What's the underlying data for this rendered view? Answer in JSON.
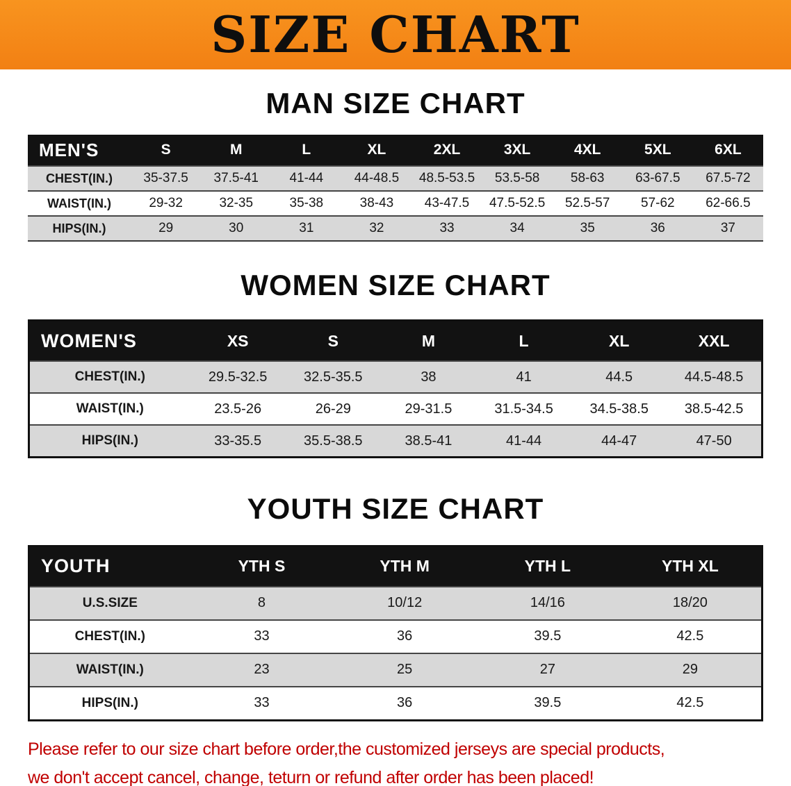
{
  "banner": {
    "title": "SIZE CHART",
    "bg_color": "#f28013",
    "text_color": "#0e0e0e"
  },
  "sections": {
    "men": {
      "heading": "MAN SIZE CHART",
      "table": {
        "label": "MEN'S",
        "columns": [
          "S",
          "M",
          "L",
          "XL",
          "2XL",
          "3XL",
          "4XL",
          "5XL",
          "6XL"
        ],
        "rows": [
          {
            "label": "CHEST(IN.)",
            "values": [
              "35-37.5",
              "37.5-41",
              "41-44",
              "44-48.5",
              "48.5-53.5",
              "53.5-58",
              "58-63",
              "63-67.5",
              "67.5-72"
            ]
          },
          {
            "label": "WAIST(IN.)",
            "values": [
              "29-32",
              "32-35",
              "35-38",
              "38-43",
              "43-47.5",
              "47.5-52.5",
              "52.5-57",
              "57-62",
              "62-66.5"
            ]
          },
          {
            "label": "HIPS(IN.)",
            "values": [
              "29",
              "30",
              "31",
              "32",
              "33",
              "34",
              "35",
              "36",
              "37"
            ]
          }
        ]
      }
    },
    "women": {
      "heading": "WOMEN SIZE CHART",
      "table": {
        "label": "WOMEN'S",
        "columns": [
          "XS",
          "S",
          "M",
          "L",
          "XL",
          "XXL"
        ],
        "rows": [
          {
            "label": "CHEST(IN.)",
            "values": [
              "29.5-32.5",
              "32.5-35.5",
              "38",
              "41",
              "44.5",
              "44.5-48.5"
            ]
          },
          {
            "label": "WAIST(IN.)",
            "values": [
              "23.5-26",
              "26-29",
              "29-31.5",
              "31.5-34.5",
              "34.5-38.5",
              "38.5-42.5"
            ]
          },
          {
            "label": "HIPS(IN.)",
            "values": [
              "33-35.5",
              "35.5-38.5",
              "38.5-41",
              "41-44",
              "44-47",
              "47-50"
            ]
          }
        ]
      }
    },
    "youth": {
      "heading": "YOUTH SIZE CHART",
      "table": {
        "label": "YOUTH",
        "columns": [
          "YTH S",
          "YTH M",
          "YTH L",
          "YTH XL"
        ],
        "rows": [
          {
            "label": "U.S.SIZE",
            "values": [
              "8",
              "10/12",
              "14/16",
              "18/20"
            ]
          },
          {
            "label": "CHEST(IN.)",
            "values": [
              "33",
              "36",
              "39.5",
              "42.5"
            ]
          },
          {
            "label": "WAIST(IN.)",
            "values": [
              "23",
              "25",
              "27",
              "29"
            ]
          },
          {
            "label": "HIPS(IN.)",
            "values": [
              "33",
              "36",
              "39.5",
              "42.5"
            ]
          }
        ]
      }
    }
  },
  "footer": {
    "color": "#c00000",
    "lines": [
      "Please refer to our size chart before order,the customized jerseys are special products,",
      "we don't accept cancel, change, teturn or refund after order has been placed!"
    ]
  }
}
